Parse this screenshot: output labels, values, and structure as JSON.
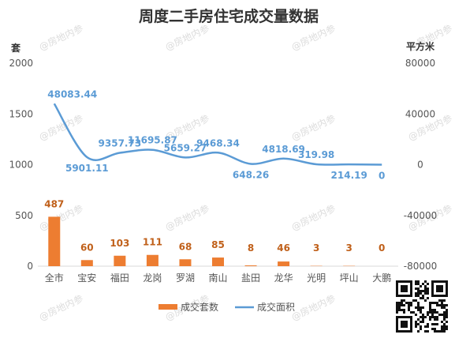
{
  "chart_data": {
    "type": "bar+line",
    "title": "周度二手房住宅成交量数据",
    "categories": [
      "全市",
      "宝安",
      "福田",
      "龙岗",
      "罗湖",
      "南山",
      "盐田",
      "龙华",
      "光明",
      "坪山",
      "大鹏"
    ],
    "series": [
      {
        "name": "成交套数",
        "type": "bar",
        "axis": "left",
        "color": "#ed7d31",
        "values": [
          487,
          60,
          103,
          111,
          68,
          85,
          8,
          46,
          3,
          3,
          0
        ]
      },
      {
        "name": "成交面积",
        "type": "line",
        "axis": "right",
        "color": "#5b9bd5",
        "values": [
          48083.44,
          5901.11,
          9357.73,
          11695.87,
          5659.27,
          9468.34,
          648.26,
          4818.69,
          319.98,
          214.19,
          0
        ],
        "labels": [
          "48083.44",
          "5901.11",
          "9357.73",
          "11695.87",
          "5659.27",
          "9468.34",
          "648.26",
          "4818.69",
          "319.98",
          "214.19",
          "0"
        ]
      }
    ],
    "left_axis": {
      "unit": "套",
      "ylim": [
        0,
        2000
      ],
      "ticks": [
        "0",
        "500",
        "1000",
        "1500",
        "2000"
      ]
    },
    "right_axis": {
      "unit": "平方米",
      "ylim": [
        -80000,
        80000
      ],
      "ticks": [
        "-80000",
        "-40000",
        "0",
        "40000",
        "80000"
      ]
    },
    "grid": false,
    "legend_position": "bottom",
    "colors": {
      "bar": "#ed7d31",
      "line": "#5b9bd5",
      "bar_label": "#c0601a"
    }
  },
  "watermark": "@房地内参"
}
